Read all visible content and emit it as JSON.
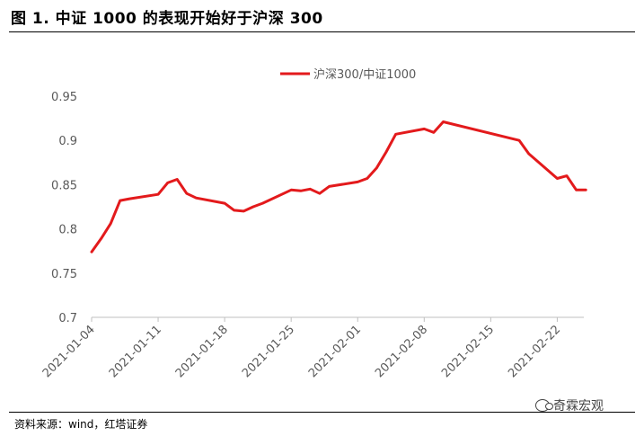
{
  "header": {
    "title": "图 1. 中证 1000 的表现开始好于沪深 300"
  },
  "footer": {
    "source": "资料来源：wind，红塔证券"
  },
  "watermark": {
    "text": "奇霖宏观",
    "icon": "wechat-icon"
  },
  "chart_data": {
    "type": "line",
    "title": "",
    "xlabel": "",
    "ylabel": "",
    "ylim": [
      0.7,
      0.95
    ],
    "yticks": [
      "0.95",
      "0.9",
      "0.85",
      "0.8",
      "0.75",
      "0.7"
    ],
    "xticks": [
      "2021-01-04",
      "2021-01-11",
      "2021-01-18",
      "2021-01-25",
      "2021-02-01",
      "2021-02-08",
      "2021-02-15",
      "2021-02-22"
    ],
    "grid": false,
    "legend": "top-center",
    "series": [
      {
        "name": "沪深300/中证1000",
        "color": "#e31a1c",
        "x": [
          "2021-01-04",
          "2021-01-05",
          "2021-01-06",
          "2021-01-07",
          "2021-01-08",
          "2021-01-11",
          "2021-01-12",
          "2021-01-13",
          "2021-01-14",
          "2021-01-15",
          "2021-01-18",
          "2021-01-19",
          "2021-01-20",
          "2021-01-21",
          "2021-01-22",
          "2021-01-25",
          "2021-01-26",
          "2021-01-27",
          "2021-01-28",
          "2021-01-29",
          "2021-02-01",
          "2021-02-02",
          "2021-02-03",
          "2021-02-04",
          "2021-02-05",
          "2021-02-08",
          "2021-02-09",
          "2021-02-10",
          "2021-02-18",
          "2021-02-19",
          "2021-02-22",
          "2021-02-23",
          "2021-02-24",
          "2021-02-25"
        ],
        "values": [
          0.774,
          0.789,
          0.806,
          0.832,
          0.834,
          0.839,
          0.852,
          0.856,
          0.84,
          0.835,
          0.829,
          0.821,
          0.82,
          0.825,
          0.829,
          0.844,
          0.843,
          0.845,
          0.84,
          0.848,
          0.853,
          0.857,
          0.869,
          0.887,
          0.907,
          0.913,
          0.909,
          0.921,
          0.9,
          0.885,
          0.857,
          0.86,
          0.844,
          0.844
        ]
      }
    ]
  }
}
